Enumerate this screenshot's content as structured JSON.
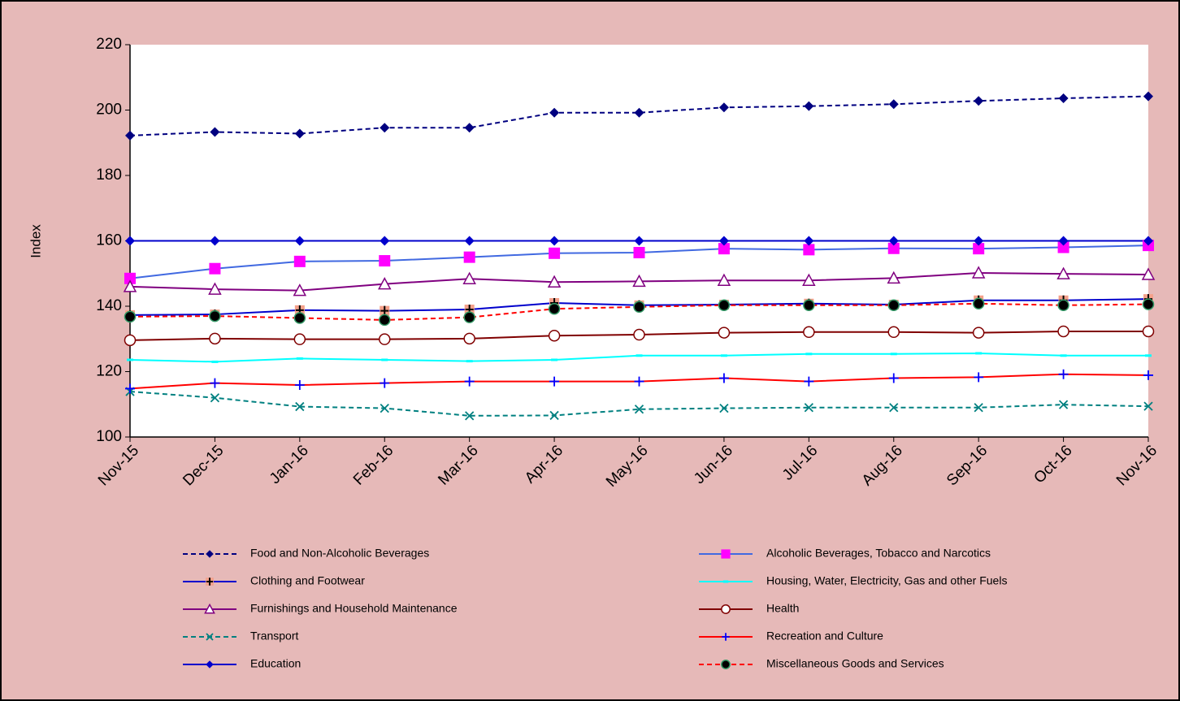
{
  "chart_data": {
    "type": "line",
    "y_label": "Index",
    "categories": [
      "Nov-15",
      "Dec-15",
      "Jan-16",
      "Feb-16",
      "Mar-16",
      "Apr-16",
      "May-16",
      "Jun-16",
      "Jul-16",
      "Aug-16",
      "Sep-16",
      "Oct-16",
      "Nov-16"
    ],
    "ylim": [
      100,
      220
    ],
    "yticks": [
      100,
      120,
      140,
      160,
      180,
      200,
      220
    ],
    "series": [
      {
        "name": "Food and Non-Alcoholic Beverages",
        "color": "#000080",
        "dash": true,
        "marker": "diamond",
        "marker_color": "#000080",
        "values": [
          192.2,
          193.3,
          192.8,
          194.6,
          194.6,
          199.2,
          199.2,
          200.8,
          201.2,
          201.8,
          202.8,
          203.6,
          204.2
        ]
      },
      {
        "name": "Alcoholic Beverages, Tobacco and Narcotics",
        "color": "#4169E1",
        "dash": false,
        "marker": "square",
        "marker_color": "#FF00FF",
        "values": [
          148.5,
          151.5,
          153.7,
          153.9,
          155.0,
          156.2,
          156.4,
          157.6,
          157.3,
          157.7,
          157.6,
          158.0,
          158.6
        ]
      },
      {
        "name": "Clothing and Footwear",
        "color": "#0000CC",
        "dash": false,
        "marker": "plus-square",
        "marker_color": "#F4A08A",
        "values": [
          137.3,
          137.5,
          138.8,
          138.6,
          139.0,
          141.0,
          140.3,
          140.5,
          140.8,
          140.5,
          141.8,
          141.8,
          142.2
        ]
      },
      {
        "name": "Housing, Water, Electricity, Gas and other Fuels",
        "color": "#00FFFF",
        "dash": false,
        "marker": "dash",
        "marker_color": "#00FFFF",
        "values": [
          123.6,
          123.0,
          124.0,
          123.6,
          123.2,
          123.6,
          124.9,
          124.9,
          125.4,
          125.4,
          125.6,
          124.9,
          124.9
        ]
      },
      {
        "name": "Furnishings and Household Maintenance",
        "color": "#800080",
        "dash": false,
        "marker": "triangle",
        "marker_color": "#800080",
        "values": [
          146.0,
          145.2,
          144.8,
          146.8,
          148.4,
          147.4,
          147.6,
          147.9,
          147.9,
          148.6,
          150.2,
          149.9,
          149.7
        ]
      },
      {
        "name": "Health",
        "color": "#800000",
        "dash": false,
        "marker": "circle-open",
        "marker_color": "#800000",
        "values": [
          129.6,
          130.1,
          129.9,
          129.9,
          130.1,
          131.0,
          131.3,
          131.9,
          132.1,
          132.1,
          131.9,
          132.3,
          132.3
        ]
      },
      {
        "name": "Transport",
        "color": "#008080",
        "dash": true,
        "marker": "x",
        "marker_color": "#008080",
        "values": [
          113.9,
          112.0,
          109.3,
          108.8,
          106.5,
          106.6,
          108.5,
          108.8,
          109.0,
          109.0,
          109.0,
          109.9,
          109.4
        ]
      },
      {
        "name": "Recreation and Culture",
        "color": "#FF0000",
        "dash": false,
        "marker": "plus",
        "marker_color": "#0000FF",
        "values": [
          114.8,
          116.5,
          115.9,
          116.5,
          117.0,
          117.0,
          117.0,
          118.0,
          117.0,
          118.0,
          118.3,
          119.2,
          118.9
        ]
      },
      {
        "name": "Education",
        "color": "#0000CC",
        "dash": false,
        "marker": "diamond",
        "marker_color": "#0000CC",
        "values": [
          160,
          160,
          160,
          160,
          160,
          160,
          160,
          160,
          160,
          160,
          160,
          160,
          160
        ]
      },
      {
        "name": "Miscellaneous Goods and Services",
        "color": "#FF0000",
        "dash": true,
        "marker": "circle-filled",
        "marker_color": "#000000",
        "values": [
          136.8,
          137.0,
          136.4,
          135.8,
          136.6,
          139.2,
          139.8,
          140.3,
          140.3,
          140.3,
          140.8,
          140.3,
          140.6
        ]
      }
    ]
  }
}
